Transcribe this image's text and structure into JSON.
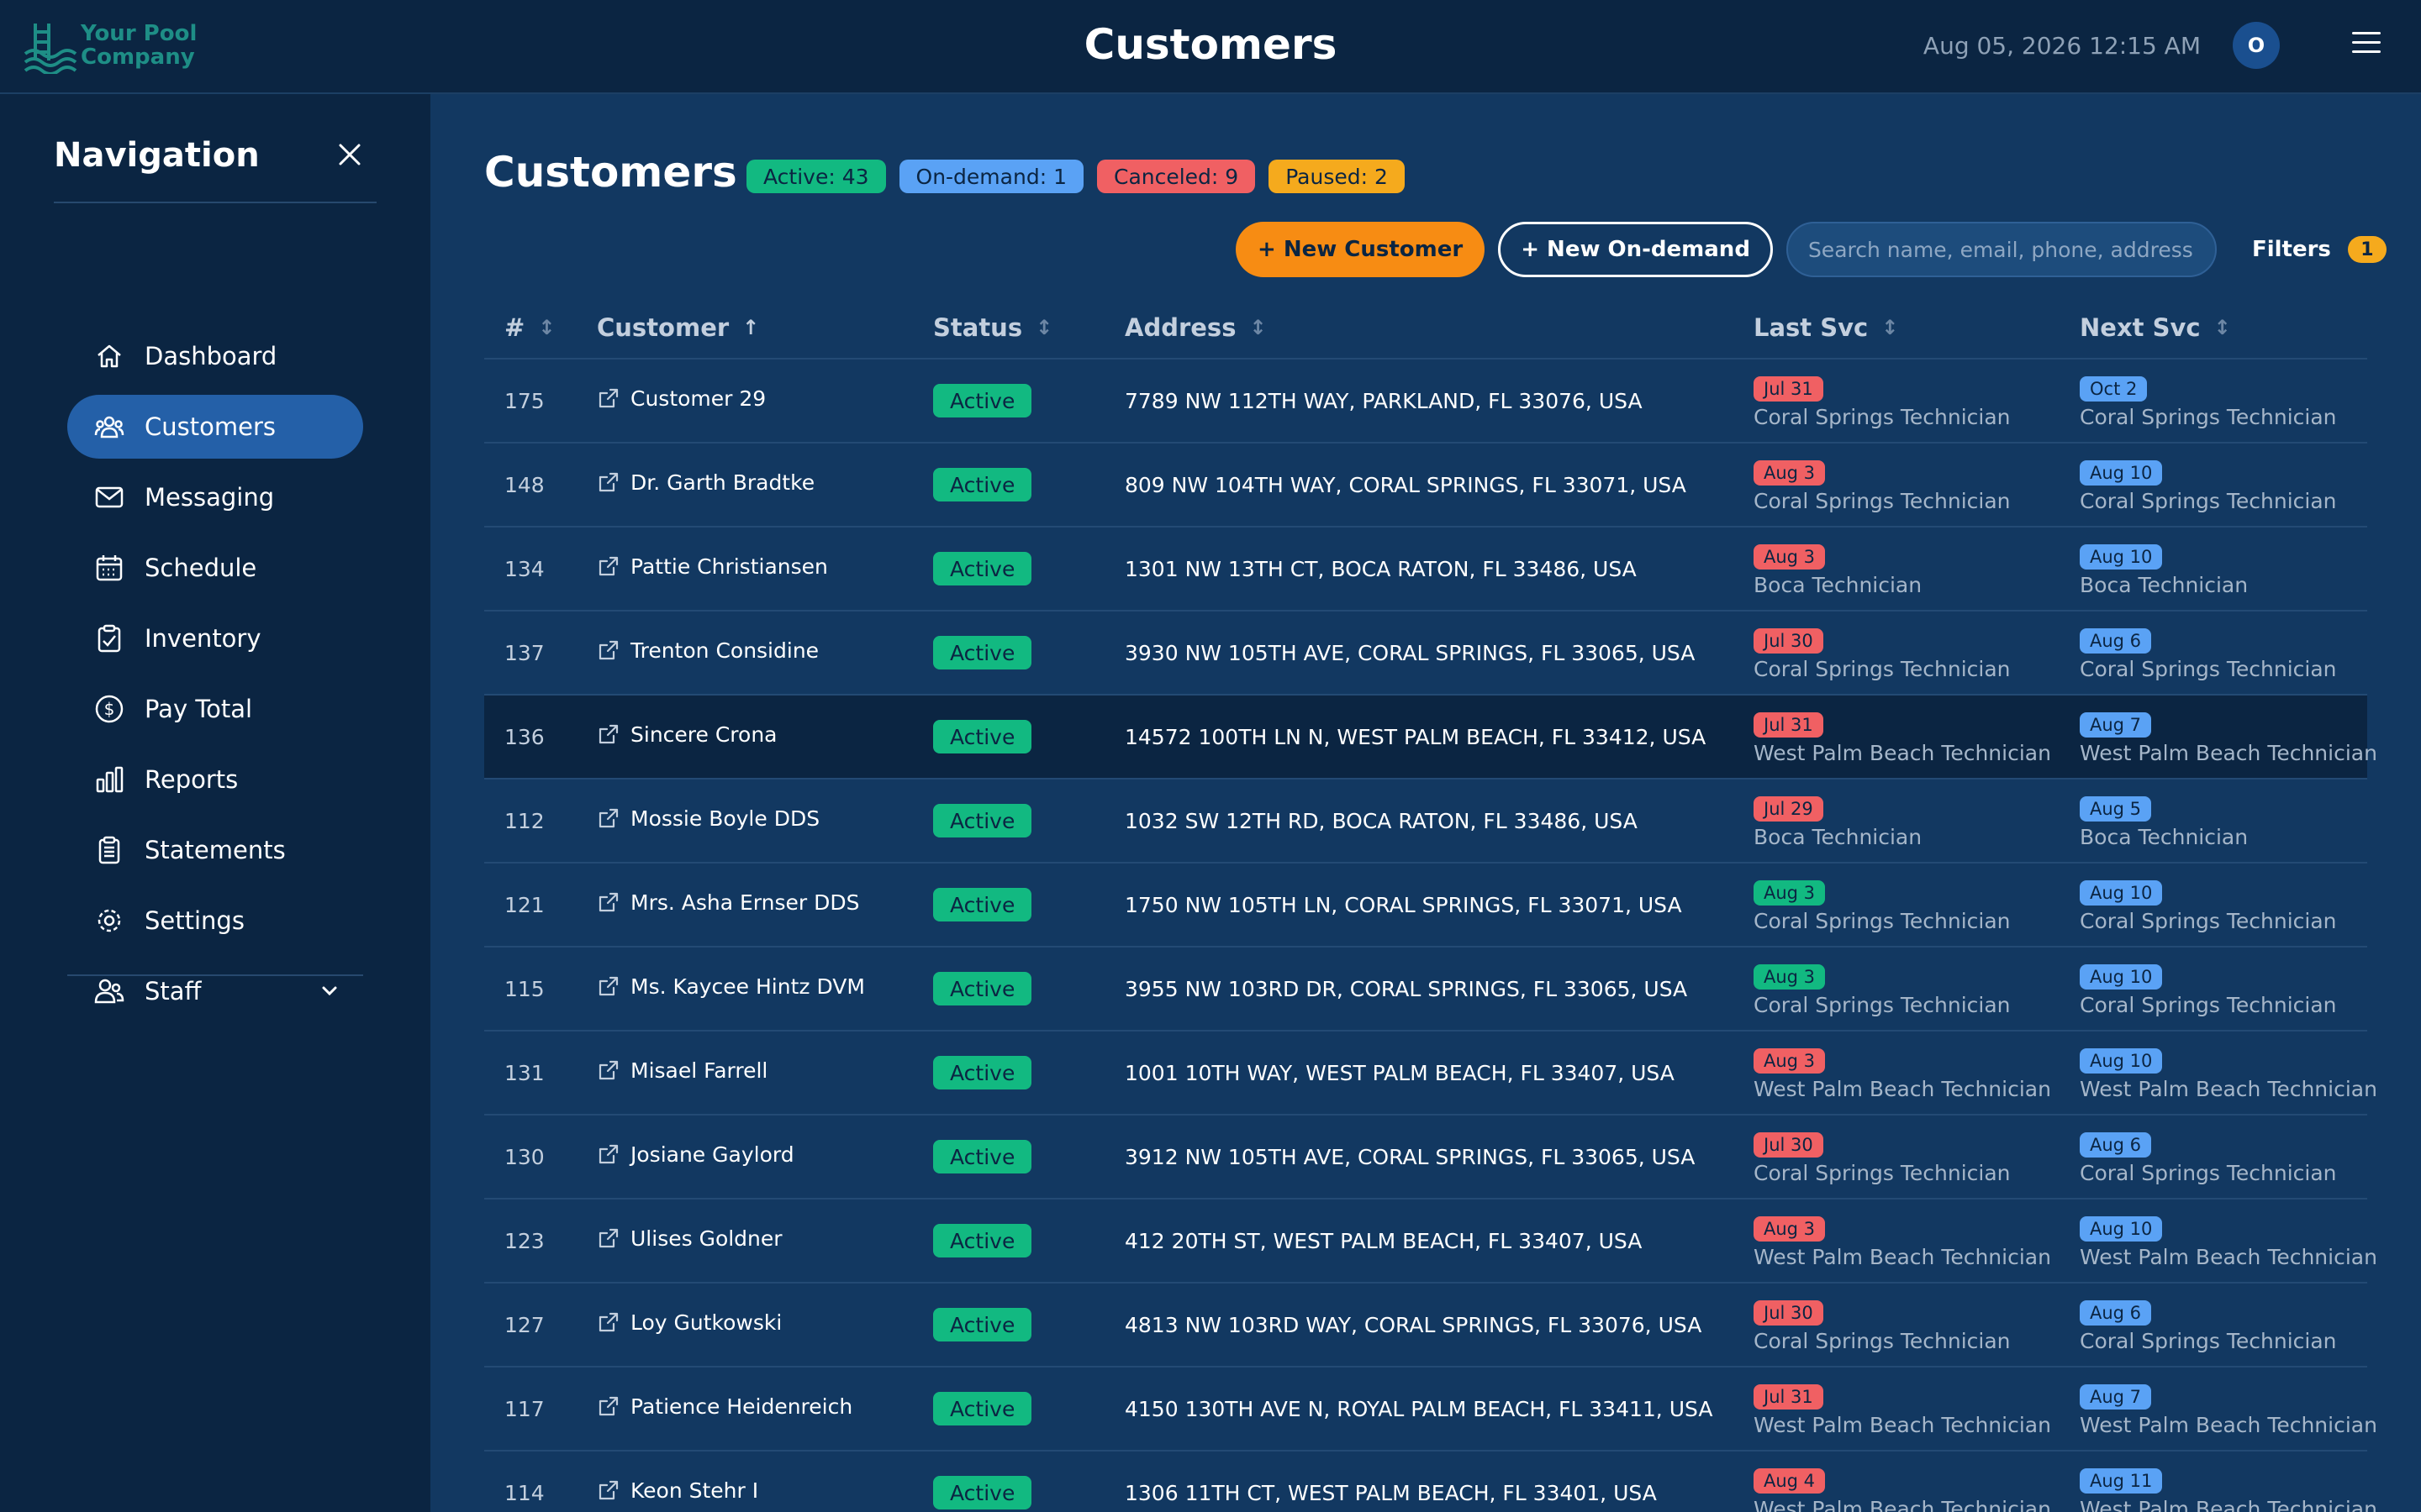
{
  "header": {
    "logo_text_line1": "Your Pool",
    "logo_text_line2": "Company",
    "title": "Customers",
    "datetime": "Aug 05, 2026 12:15 AM",
    "avatar_initial": "O"
  },
  "sidebar": {
    "title": "Navigation",
    "items": [
      {
        "label": "Dashboard",
        "icon": "home-icon"
      },
      {
        "label": "Customers",
        "icon": "users-icon",
        "active": true
      },
      {
        "label": "Messaging",
        "icon": "mail-icon"
      },
      {
        "label": "Schedule",
        "icon": "calendar-icon"
      },
      {
        "label": "Inventory",
        "icon": "clipboard-icon"
      },
      {
        "label": "Pay Total",
        "icon": "dollar-icon"
      },
      {
        "label": "Reports",
        "icon": "bar-chart-icon"
      },
      {
        "label": "Statements",
        "icon": "document-icon"
      },
      {
        "label": "Settings",
        "icon": "gear-icon"
      },
      {
        "label": "Staff",
        "icon": "staff-icon",
        "expandable": true
      }
    ]
  },
  "main": {
    "title": "Customers",
    "badges": {
      "active": "Active: 43",
      "ondemand": "On-demand: 1",
      "canceled": "Canceled: 9",
      "paused": "Paused: 2"
    },
    "new_customer": "+ New Customer",
    "new_ondemand": "+ New On-demand",
    "search_placeholder": "Search name, email, phone, address",
    "filters_label": "Filters",
    "filters_count": "1"
  },
  "table": {
    "headers": {
      "num": "#",
      "customer": "Customer",
      "status": "Status",
      "address": "Address",
      "last": "Last Svc",
      "next": "Next Svc"
    },
    "sort_customer": "↑",
    "sort_other": "↕",
    "rows": [
      {
        "num": "175",
        "name": "Customer 29",
        "status": "Active",
        "address": "7789 NW 112TH WAY, PARKLAND, FL 33076, USA",
        "last_date": "Jul 31",
        "last_color": "red",
        "last_tech": "Coral Springs Technician",
        "next_date": "Oct 2",
        "next_tech": "Coral Springs Technician"
      },
      {
        "num": "148",
        "name": "Dr. Garth Bradtke",
        "status": "Active",
        "address": "809 NW 104TH WAY, CORAL SPRINGS, FL 33071, USA",
        "last_date": "Aug 3",
        "last_color": "red",
        "last_tech": "Coral Springs Technician",
        "next_date": "Aug 10",
        "next_tech": "Coral Springs Technician"
      },
      {
        "num": "134",
        "name": "Pattie Christiansen",
        "status": "Active",
        "address": "1301 NW 13TH CT, BOCA RATON, FL 33486, USA",
        "last_date": "Aug 3",
        "last_color": "red",
        "last_tech": "Boca Technician",
        "next_date": "Aug 10",
        "next_tech": "Boca Technician"
      },
      {
        "num": "137",
        "name": "Trenton Considine",
        "status": "Active",
        "address": "3930 NW 105TH AVE, CORAL SPRINGS, FL 33065, USA",
        "last_date": "Jul 30",
        "last_color": "red",
        "last_tech": "Coral Springs Technician",
        "next_date": "Aug 6",
        "next_tech": "Coral Springs Technician"
      },
      {
        "num": "136",
        "name": "Sincere Crona",
        "status": "Active",
        "address": "14572 100TH LN N, WEST PALM BEACH, FL 33412, USA",
        "last_date": "Jul 31",
        "last_color": "red",
        "last_tech": "West Palm Beach Technician",
        "next_date": "Aug 7",
        "next_tech": "West Palm Beach Technician",
        "highlight": true
      },
      {
        "num": "112",
        "name": "Mossie Boyle DDS",
        "status": "Active",
        "address": "1032 SW 12TH RD, BOCA RATON, FL 33486, USA",
        "last_date": "Jul 29",
        "last_color": "red",
        "last_tech": "Boca Technician",
        "next_date": "Aug 5",
        "next_tech": "Boca Technician"
      },
      {
        "num": "121",
        "name": "Mrs. Asha Ernser DDS",
        "status": "Active",
        "address": "1750 NW 105TH LN, CORAL SPRINGS, FL 33071, USA",
        "last_date": "Aug 3",
        "last_color": "green",
        "last_tech": "Coral Springs Technician",
        "next_date": "Aug 10",
        "next_tech": "Coral Springs Technician"
      },
      {
        "num": "115",
        "name": "Ms. Kaycee Hintz DVM",
        "status": "Active",
        "address": "3955 NW 103RD DR, CORAL SPRINGS, FL 33065, USA",
        "last_date": "Aug 3",
        "last_color": "green",
        "last_tech": "Coral Springs Technician",
        "next_date": "Aug 10",
        "next_tech": "Coral Springs Technician"
      },
      {
        "num": "131",
        "name": "Misael Farrell",
        "status": "Active",
        "address": "1001 10TH WAY, WEST PALM BEACH, FL 33407, USA",
        "last_date": "Aug 3",
        "last_color": "red",
        "last_tech": "West Palm Beach Technician",
        "next_date": "Aug 10",
        "next_tech": "West Palm Beach Technician"
      },
      {
        "num": "130",
        "name": "Josiane Gaylord",
        "status": "Active",
        "address": "3912 NW 105TH AVE, CORAL SPRINGS, FL 33065, USA",
        "last_date": "Jul 30",
        "last_color": "red",
        "last_tech": "Coral Springs Technician",
        "next_date": "Aug 6",
        "next_tech": "Coral Springs Technician"
      },
      {
        "num": "123",
        "name": "Ulises Goldner",
        "status": "Active",
        "address": "412 20TH ST, WEST PALM BEACH, FL 33407, USA",
        "last_date": "Aug 3",
        "last_color": "red",
        "last_tech": "West Palm Beach Technician",
        "next_date": "Aug 10",
        "next_tech": "West Palm Beach Technician"
      },
      {
        "num": "127",
        "name": "Loy Gutkowski",
        "status": "Active",
        "address": "4813 NW 103RD WAY, CORAL SPRINGS, FL 33076, USA",
        "last_date": "Jul 30",
        "last_color": "red",
        "last_tech": "Coral Springs Technician",
        "next_date": "Aug 6",
        "next_tech": "Coral Springs Technician"
      },
      {
        "num": "117",
        "name": "Patience Heidenreich",
        "status": "Active",
        "address": "4150 130TH AVE N, ROYAL PALM BEACH, FL 33411, USA",
        "last_date": "Jul 31",
        "last_color": "red",
        "last_tech": "West Palm Beach Technician",
        "next_date": "Aug 7",
        "next_tech": "West Palm Beach Technician"
      },
      {
        "num": "114",
        "name": "Keon Stehr I",
        "status": "Active",
        "address": "1306 11TH CT, WEST PALM BEACH, FL 33401, USA",
        "last_date": "Aug 4",
        "last_color": "red",
        "last_tech": "West Palm Beach Technician",
        "next_date": "Aug 11",
        "next_tech": "West Palm Beach Technician"
      }
    ]
  },
  "colors": {
    "background": "#123861",
    "sidebar": "#0b2542",
    "accent_orange": "#f78c13",
    "active_green": "#12b981",
    "info_blue": "#5aa2f5",
    "danger_red": "#f06063",
    "warning_yellow": "#f5aa1d"
  }
}
